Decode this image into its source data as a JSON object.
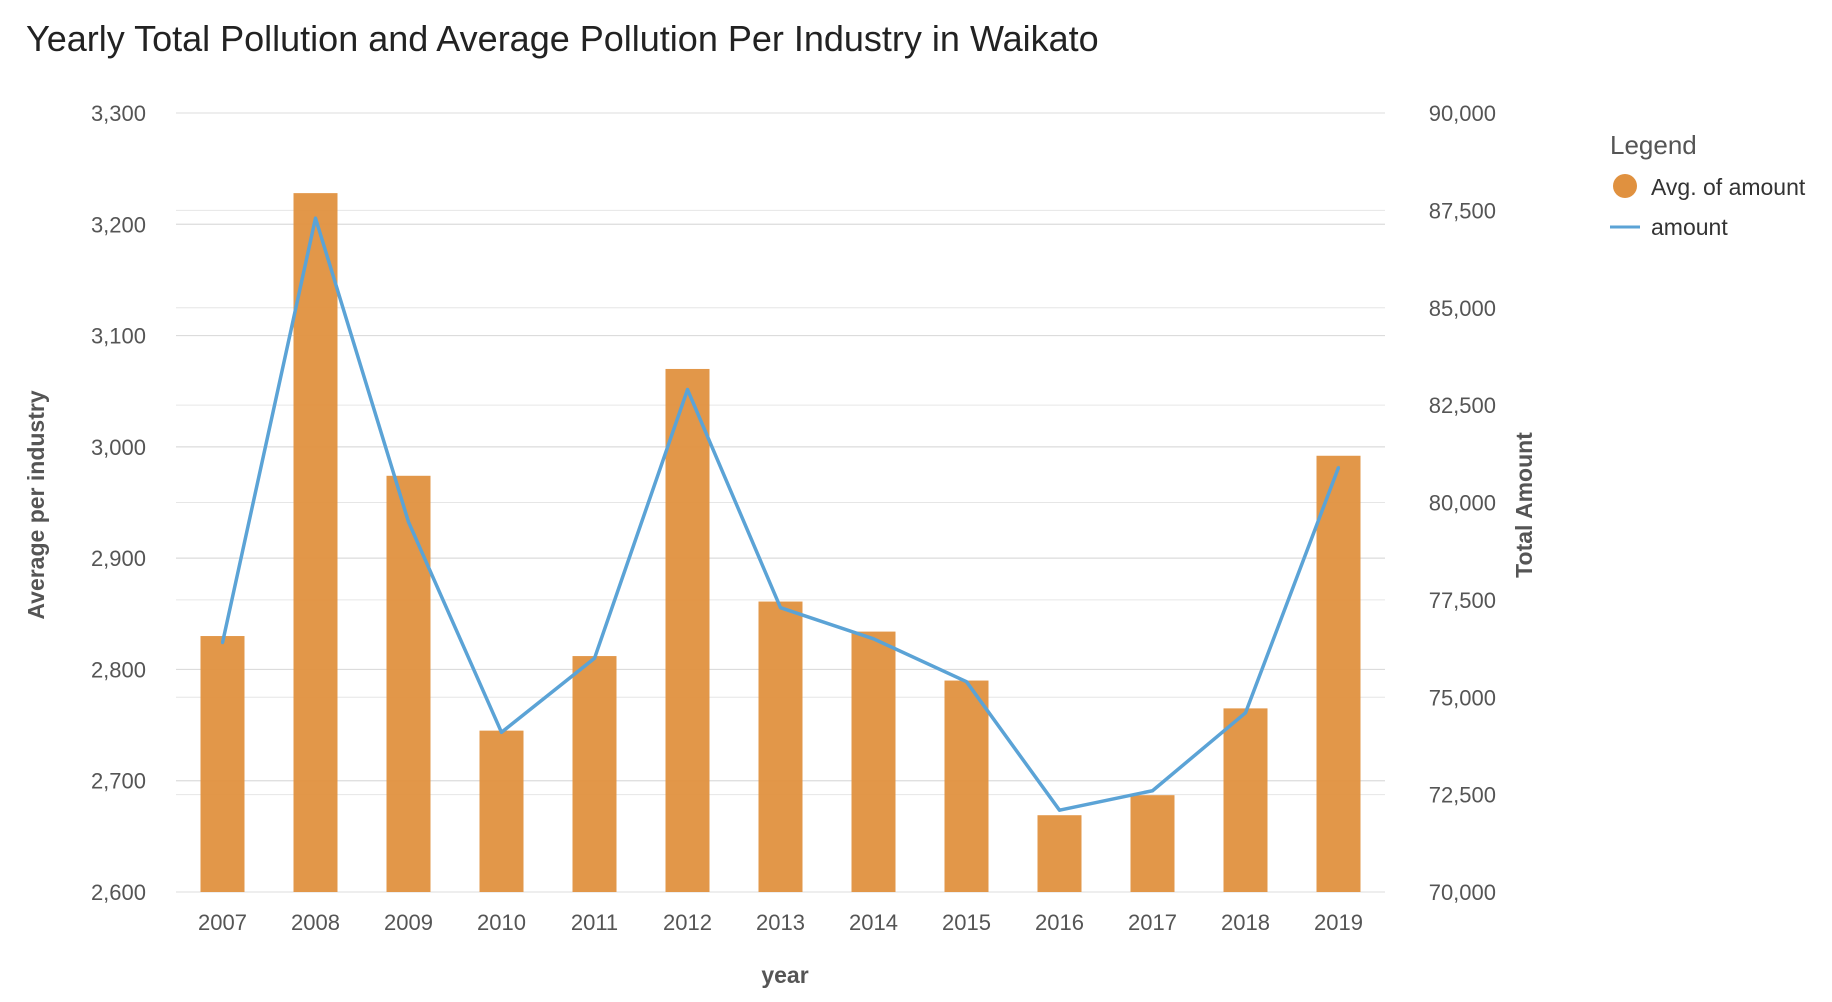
{
  "chart_data": {
    "type": "bar+line",
    "title": "Yearly Total Pollution and Average Pollution Per Industry in Waikato",
    "xlabel": "year",
    "ylabel_left": "Average per industry",
    "ylabel_right": "Total Amount",
    "categories": [
      "2007",
      "2008",
      "2009",
      "2010",
      "2011",
      "2012",
      "2013",
      "2014",
      "2015",
      "2016",
      "2017",
      "2018",
      "2019"
    ],
    "series": [
      {
        "name": "Avg. of amount",
        "type": "bar",
        "axis": "left",
        "color": "#E0913F",
        "values": [
          2830,
          3228,
          2974,
          2745,
          2812,
          3070,
          2861,
          2834,
          2790,
          2669,
          2687,
          2765,
          2992
        ]
      },
      {
        "name": "amount",
        "type": "line",
        "axis": "right",
        "color": "#5BA3D6",
        "values": [
          76400,
          87300,
          79500,
          74100,
          76000,
          82900,
          77300,
          76500,
          75400,
          72100,
          72600,
          74600,
          80900
        ]
      }
    ],
    "ylim_left": [
      2600,
      3300
    ],
    "yticks_left": [
      2600,
      2700,
      2800,
      2900,
      3000,
      3100,
      3200,
      3300
    ],
    "ytick_labels_left": [
      "2,600",
      "2,700",
      "2,800",
      "2,900",
      "3,000",
      "3,100",
      "3,200",
      "3,300"
    ],
    "ylim_right": [
      70000,
      90000
    ],
    "yticks_right": [
      70000,
      72500,
      75000,
      77500,
      80000,
      82500,
      85000,
      87500,
      90000
    ],
    "ytick_labels_right": [
      "70,000",
      "72,500",
      "75,000",
      "77,500",
      "80,000",
      "82,500",
      "85,000",
      "87,500",
      "90,000"
    ],
    "legend": {
      "title": "Legend",
      "position": "top-right",
      "items": [
        "Avg. of amount",
        "amount"
      ]
    },
    "grid": true
  }
}
